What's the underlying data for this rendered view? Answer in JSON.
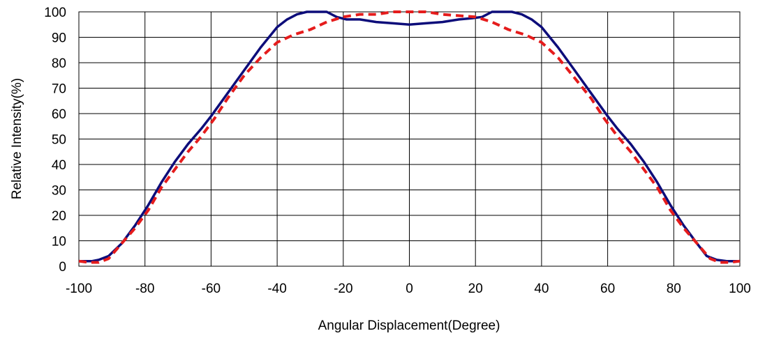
{
  "chart_data": {
    "type": "line",
    "title": "",
    "xlabel": "Angular Displacement(Degree)",
    "ylabel": "Relative Intensity(%)",
    "xlim": [
      -100,
      100
    ],
    "ylim": [
      0,
      100
    ],
    "xticks": [
      -100,
      -80,
      -60,
      -40,
      -20,
      0,
      20,
      40,
      60,
      80,
      100
    ],
    "yticks": [
      0,
      10,
      20,
      30,
      40,
      50,
      60,
      70,
      80,
      90,
      100
    ],
    "grid": true,
    "series": [
      {
        "color": "#0d0d7a",
        "line_style": "solid",
        "x": [
          -100,
          -96,
          -94,
          -91,
          -87,
          -83,
          -79,
          -75,
          -71,
          -67,
          -63,
          -60,
          -55,
          -50,
          -45,
          -40,
          -37,
          -34,
          -31,
          -28,
          -25,
          -22,
          -19,
          -15,
          -10,
          -5,
          0,
          5,
          10,
          15,
          19,
          22,
          25,
          28,
          31,
          34,
          37,
          40,
          45,
          50,
          55,
          60,
          63,
          67,
          71,
          75,
          79,
          83,
          87,
          90,
          93,
          96,
          100
        ],
        "y": [
          2,
          2,
          2.5,
          4,
          9,
          16,
          24,
          33,
          41,
          48,
          54,
          59,
          68,
          77,
          86,
          94,
          97,
          99,
          100,
          100,
          100,
          98,
          97,
          97,
          96,
          95.5,
          95,
          95.5,
          96,
          97,
          97.5,
          98,
          100,
          100,
          100,
          99,
          97,
          94,
          86,
          77,
          68,
          59,
          54,
          48,
          41,
          33,
          24,
          16,
          9,
          4,
          2.5,
          2,
          2
        ]
      },
      {
        "color": "#e51c1c",
        "line_style": "dashed",
        "x": [
          -100,
          -97,
          -94,
          -91,
          -87,
          -83,
          -79,
          -75,
          -71,
          -67,
          -63,
          -59,
          -55,
          -50,
          -45,
          -40,
          -35,
          -30,
          -25,
          -20,
          -15,
          -10,
          -5,
          0,
          5,
          10,
          15,
          20,
          25,
          30,
          35,
          40,
          45,
          50,
          55,
          59,
          63,
          67,
          71,
          75,
          79,
          83,
          87,
          91,
          94,
          97,
          100
        ],
        "y": [
          2,
          1.5,
          1.5,
          3,
          9,
          15,
          22,
          31,
          38,
          45,
          51,
          58,
          66,
          75,
          82,
          88,
          91,
          93,
          96,
          98,
          99,
          99,
          100,
          100,
          100,
          99,
          98.5,
          98,
          96,
          93,
          91,
          88,
          82,
          74,
          66,
          58,
          51,
          45,
          38,
          31,
          22,
          15,
          9,
          3,
          1.5,
          1.5,
          2
        ]
      }
    ]
  }
}
